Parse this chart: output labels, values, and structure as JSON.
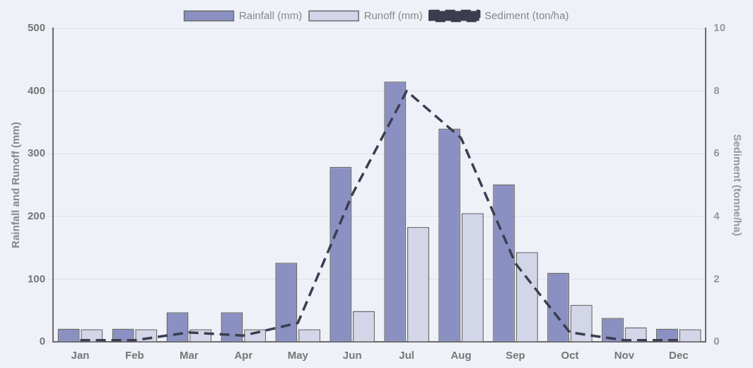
{
  "chart_data": {
    "type": "bar",
    "categories": [
      "Jan",
      "Feb",
      "Mar",
      "Apr",
      "May",
      "Jun",
      "Jul",
      "Aug",
      "Sep",
      "Oct",
      "Nov",
      "Dec"
    ],
    "series": [
      {
        "name": "Rainfall (mm)",
        "color": "#8b90c2",
        "values": [
          21,
          21,
          47,
          47,
          126,
          279,
          415,
          340,
          251,
          110,
          38,
          21
        ]
      },
      {
        "name": "Runoff (mm)",
        "color": "#d3d5e8",
        "values": [
          20,
          20,
          20,
          20,
          20,
          49,
          183,
          205,
          143,
          59,
          23,
          20
        ]
      },
      {
        "name": "Sediment (ton/ha)",
        "type": "line",
        "axis": "y2",
        "color": "#3b3e50",
        "line_style": "dashed",
        "marker": "none",
        "values": [
          0.05,
          0.05,
          0.3,
          0.2,
          0.6,
          4.7,
          8.0,
          6.5,
          2.5,
          0.3,
          0.05,
          0.05
        ]
      }
    ],
    "ylabel": "Rainfall and Runoff (mm)",
    "y2label": "Sediment (tonne/ha)",
    "ylim": [
      0,
      500
    ],
    "yticks": [
      0,
      100,
      200,
      300,
      400,
      500
    ],
    "y2lim": [
      0,
      10
    ],
    "y2ticks": [
      0,
      2,
      4,
      6,
      8,
      10
    ],
    "grid": "y",
    "legend": "top"
  }
}
